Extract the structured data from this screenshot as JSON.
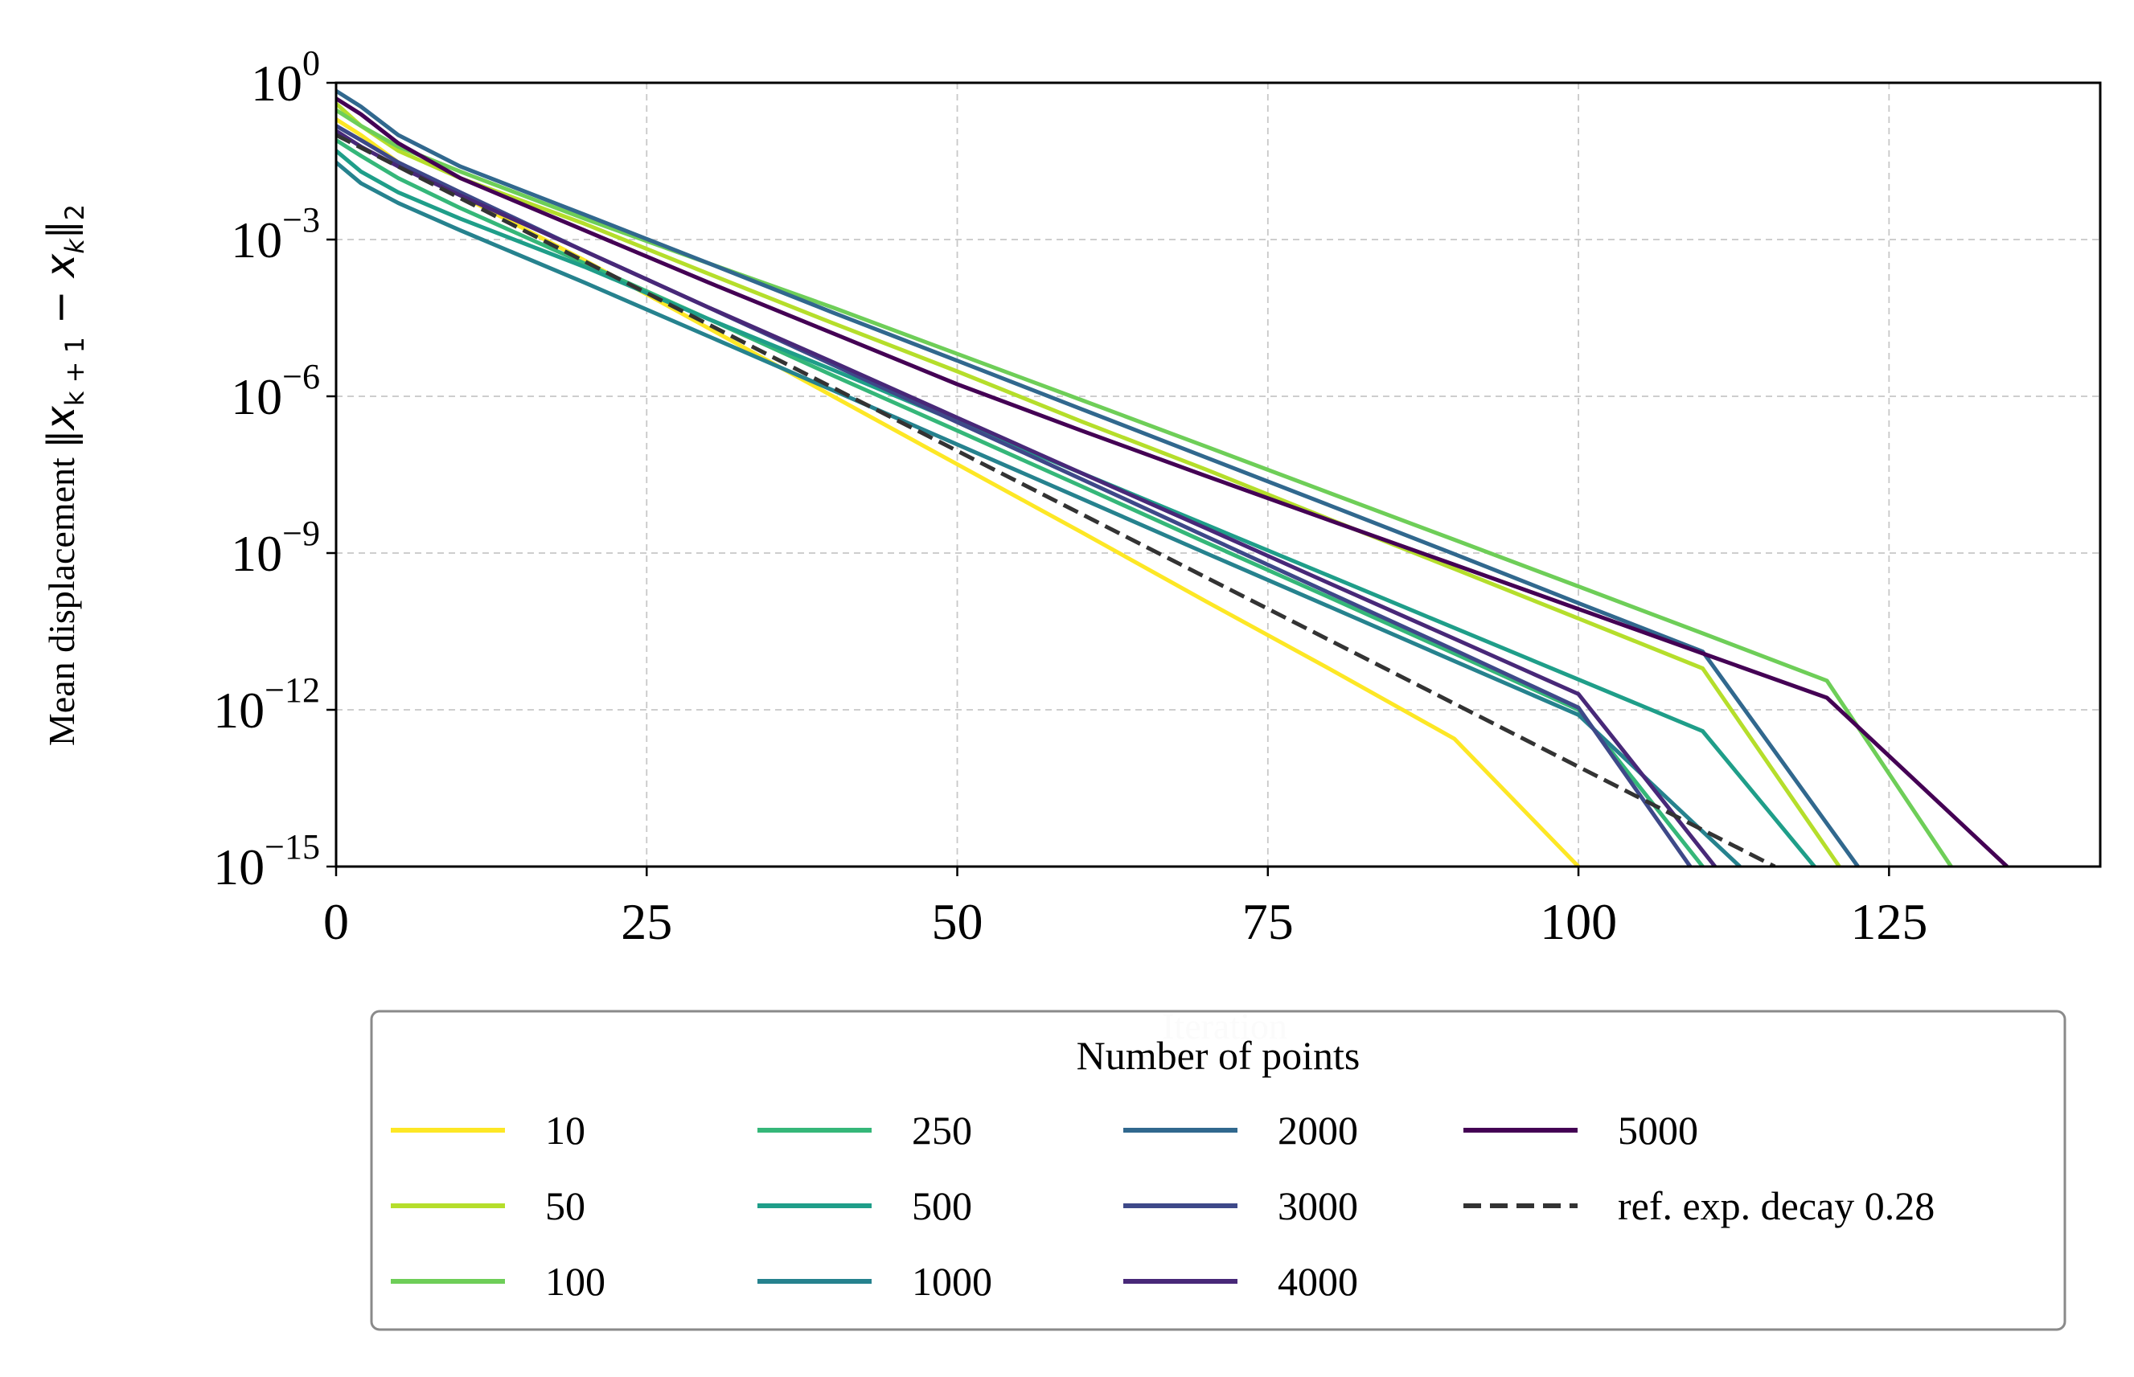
{
  "chart_data": {
    "type": "line",
    "title": "",
    "xlabel": "Iteration",
    "ylabel": "Mean displacement ‖x_{k+1} − x_k‖_2",
    "ylabel_parts": {
      "prefix": "Mean displacement ",
      "norm_open": "‖",
      "x1": "x",
      "x1_sub": "k + 1",
      "minus": " − ",
      "x2": "x",
      "x2_sub": "k",
      "norm_close": "‖",
      "outer_sub": "2"
    },
    "x_scale": "linear",
    "y_scale": "log",
    "xlim": [
      0,
      142
    ],
    "ylim": [
      1e-15,
      1
    ],
    "x_ticks": [
      0,
      25,
      50,
      75,
      100,
      125
    ],
    "x_tick_labels": [
      "0",
      "25",
      "50",
      "75",
      "100",
      "125"
    ],
    "y_ticks": [
      {
        "value": 1,
        "base": "10",
        "exp": "0"
      },
      {
        "value": 0.001,
        "base": "10",
        "exp": "−3"
      },
      {
        "value": 1e-06,
        "base": "10",
        "exp": "−6"
      },
      {
        "value": 1e-09,
        "base": "10",
        "exp": "−9"
      },
      {
        "value": 1e-12,
        "base": "10",
        "exp": "−12"
      },
      {
        "value": 1e-15,
        "base": "10",
        "exp": "−15"
      }
    ],
    "grid": true,
    "legend": {
      "title": "Number of points",
      "placement": "below",
      "columns": 4
    },
    "series": [
      {
        "name": "10",
        "color": "#fde725",
        "dash": "solid",
        "x": [
          0,
          2,
          5,
          10,
          20,
          30,
          40,
          50,
          60,
          70,
          80,
          90,
          100
        ],
        "y": [
          0.2,
          0.1,
          0.03,
          0.007,
          0.0004,
          2e-05,
          1e-06,
          5e-08,
          2.5e-09,
          1.2e-10,
          6e-12,
          2.8e-13,
          1e-15
        ]
      },
      {
        "name": "50",
        "color": "#b5de2b",
        "dash": "solid",
        "x": [
          0,
          2,
          5,
          10,
          20,
          30,
          40,
          50,
          60,
          70,
          80,
          90,
          100,
          110,
          121
        ],
        "y": [
          0.4,
          0.15,
          0.05,
          0.015,
          0.002,
          0.00022,
          2.5e-05,
          3e-06,
          3.3e-07,
          4e-08,
          4.4e-09,
          5e-10,
          5.6e-11,
          6.2e-12,
          1e-15
        ]
      },
      {
        "name": "100",
        "color": "#6ece58",
        "dash": "solid",
        "x": [
          0,
          2,
          5,
          10,
          20,
          30,
          40,
          50,
          60,
          70,
          80,
          90,
          100,
          110,
          120,
          130
        ],
        "y": [
          0.3,
          0.15,
          0.06,
          0.02,
          0.0025,
          0.00035,
          5e-05,
          6.5e-06,
          8.5e-07,
          1.1e-07,
          1.4e-08,
          1.8e-09,
          2.3e-10,
          2.9e-11,
          3.6e-12,
          1e-15
        ]
      },
      {
        "name": "250",
        "color": "#35b779",
        "dash": "solid",
        "x": [
          0,
          2,
          5,
          10,
          20,
          30,
          40,
          50,
          60,
          70,
          80,
          90,
          100,
          110
        ],
        "y": [
          0.08,
          0.04,
          0.015,
          0.004,
          0.00035,
          3e-05,
          2.5e-06,
          2.2e-07,
          1.9e-08,
          1.6e-09,
          1.4e-10,
          1.2e-11,
          1e-12,
          1e-15
        ]
      },
      {
        "name": "500",
        "color": "#1f9e89",
        "dash": "solid",
        "x": [
          0,
          2,
          5,
          10,
          20,
          30,
          40,
          50,
          60,
          70,
          80,
          90,
          100,
          110,
          119
        ],
        "y": [
          0.05,
          0.02,
          0.008,
          0.0025,
          0.0003,
          3e-05,
          3.2e-06,
          3.3e-07,
          3.4e-08,
          3.5e-09,
          3.6e-10,
          3.7e-11,
          3.8e-12,
          3.9e-13,
          1e-15
        ]
      },
      {
        "name": "1000",
        "color": "#26828e",
        "dash": "solid",
        "x": [
          0,
          2,
          5,
          10,
          20,
          30,
          40,
          50,
          60,
          70,
          80,
          90,
          100,
          113
        ],
        "y": [
          0.03,
          0.012,
          0.005,
          0.0015,
          0.00015,
          1.4e-05,
          1.3e-06,
          1.2e-07,
          1.1e-08,
          1e-09,
          9.3e-11,
          8.6e-12,
          8e-13,
          1e-15
        ]
      },
      {
        "name": "2000",
        "color": "#31688e",
        "dash": "solid",
        "x": [
          0,
          2,
          5,
          10,
          20,
          30,
          40,
          50,
          60,
          70,
          80,
          90,
          100,
          110,
          122.5
        ],
        "y": [
          0.7,
          0.35,
          0.1,
          0.025,
          0.003,
          0.00035,
          4e-05,
          4.8e-06,
          5.7e-07,
          6.8e-08,
          8.1e-09,
          9.6e-10,
          1.1e-10,
          1.3e-11,
          1e-15
        ]
      },
      {
        "name": "3000",
        "color": "#3e4989",
        "dash": "solid",
        "x": [
          0,
          2,
          5,
          10,
          20,
          30,
          40,
          50,
          60,
          70,
          80,
          90,
          100,
          109
        ],
        "y": [
          0.15,
          0.08,
          0.03,
          0.008,
          0.0006,
          5e-05,
          4e-06,
          3.2e-07,
          2.6e-08,
          2.1e-09,
          1.7e-10,
          1.4e-11,
          1.1e-12,
          1e-15
        ]
      },
      {
        "name": "4000",
        "color": "#482878",
        "dash": "solid",
        "x": [
          0,
          2,
          5,
          10,
          20,
          30,
          40,
          50,
          60,
          70,
          80,
          90,
          100,
          111
        ],
        "y": [
          0.12,
          0.06,
          0.025,
          0.007,
          0.0006,
          5e-05,
          4.5e-06,
          3.9e-07,
          3.4e-08,
          3e-09,
          2.6e-10,
          2.3e-11,
          2e-12,
          1e-15
        ]
      },
      {
        "name": "5000",
        "color": "#440154",
        "dash": "solid",
        "x": [
          0,
          2,
          5,
          10,
          20,
          30,
          40,
          50,
          60,
          70,
          80,
          90,
          100,
          110,
          120,
          134.5
        ],
        "y": [
          0.5,
          0.25,
          0.07,
          0.015,
          0.0015,
          0.00015,
          1.6e-05,
          1.7e-06,
          2.2e-07,
          3e-08,
          4.2e-09,
          6e-10,
          8.5e-11,
          1.2e-11,
          1.7e-12,
          1e-15
        ]
      },
      {
        "name": "ref. exp. decay 0.28",
        "color": "#333333",
        "dash": "dashed",
        "x": [
          0,
          115.8
        ],
        "y": [
          0.1,
          1e-15
        ]
      }
    ]
  }
}
